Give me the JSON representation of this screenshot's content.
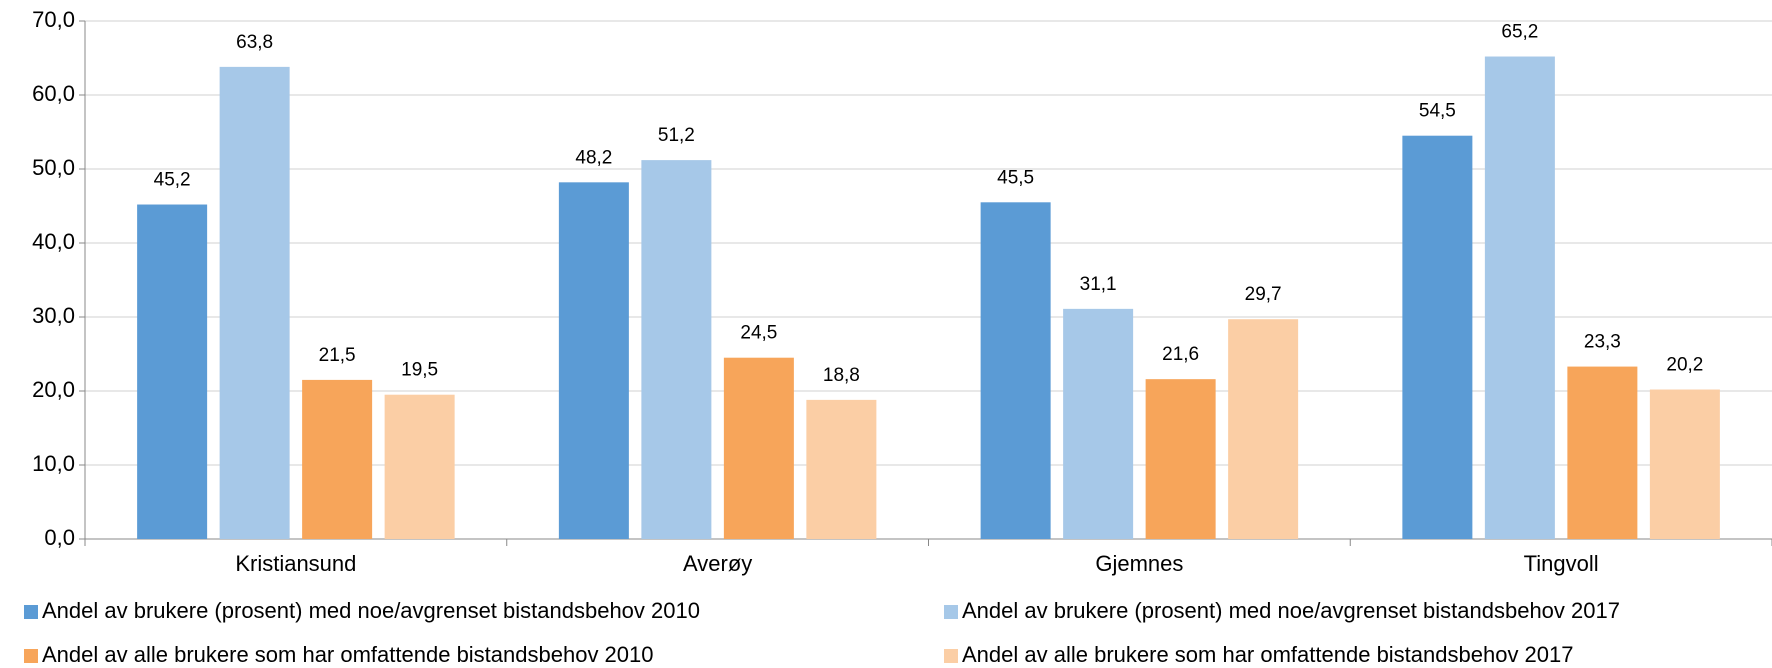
{
  "chart_data": {
    "type": "bar",
    "categories": [
      "Kristiansund",
      "Averøy",
      "Gjemnes",
      "Tingvoll"
    ],
    "series": [
      {
        "name": "Andel av brukere (prosent) med noe/avgrenset bistandsbehov 2010",
        "color": "#5b9bd5",
        "values": [
          45.2,
          48.2,
          45.5,
          54.5
        ],
        "value_labels": [
          "45,2",
          "48,2",
          "45,5",
          "54,5"
        ]
      },
      {
        "name": "Andel av brukere (prosent) med noe/avgrenset bistandsbehov 2017",
        "color": "#a6c8e8",
        "values": [
          63.8,
          51.2,
          31.1,
          65.2
        ],
        "value_labels": [
          "63,8",
          "51,2",
          "31,1",
          "65,2"
        ]
      },
      {
        "name": "Andel av alle brukere som har omfattende bistandsbehov 2010",
        "color": "#f7a55a",
        "values": [
          21.5,
          24.5,
          21.6,
          23.3
        ],
        "value_labels": [
          "21,5",
          "24,5",
          "21,6",
          "23,3"
        ]
      },
      {
        "name": "Andel av alle brukere som har omfattende bistandsbehov 2017",
        "color": "#fbcea5",
        "values": [
          19.5,
          18.8,
          29.7,
          20.2
        ],
        "value_labels": [
          "19,5",
          "18,8",
          "29,7",
          "20,2"
        ]
      }
    ],
    "ylim": [
      0,
      70
    ],
    "yticks": [
      {
        "value": 0,
        "label": "0,0"
      },
      {
        "value": 10,
        "label": "10,0"
      },
      {
        "value": 20,
        "label": "20,0"
      },
      {
        "value": 30,
        "label": "30,0"
      },
      {
        "value": 40,
        "label": "40,0"
      },
      {
        "value": 50,
        "label": "50,0"
      },
      {
        "value": 60,
        "label": "60,0"
      },
      {
        "value": 70,
        "label": "70,0"
      }
    ],
    "grid": true,
    "legend": "bottom"
  }
}
